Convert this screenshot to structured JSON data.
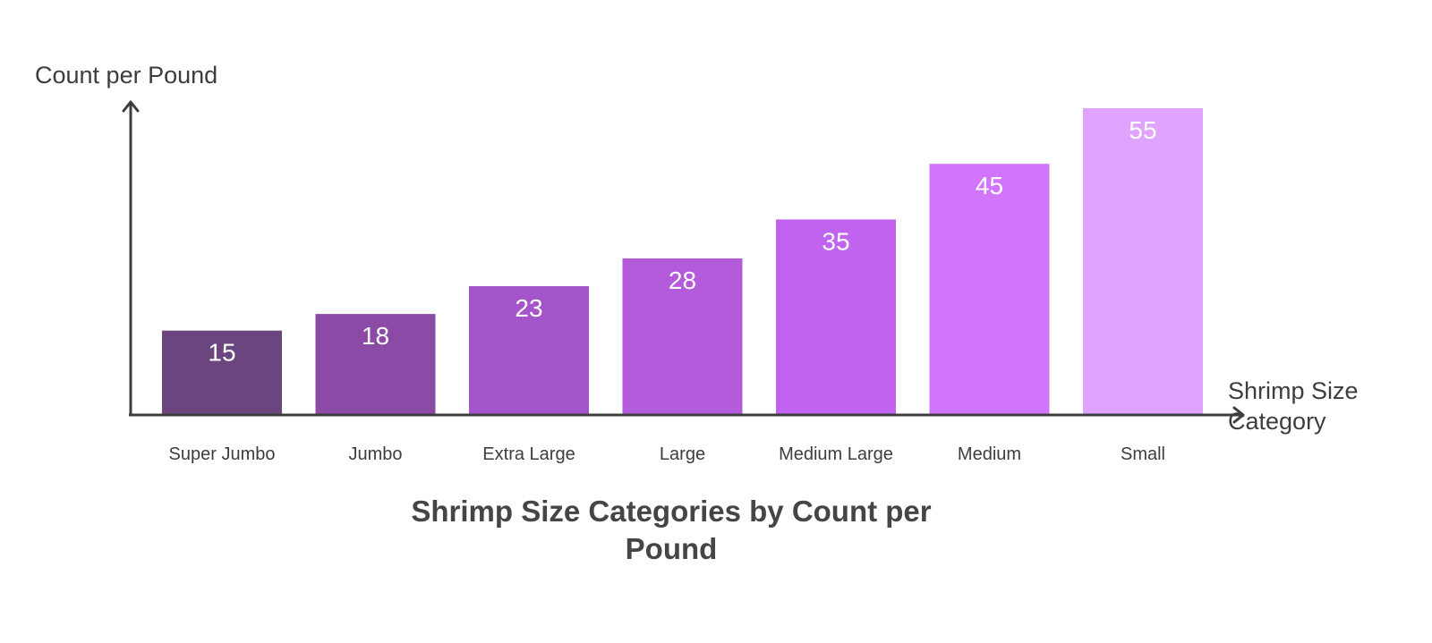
{
  "chart_data": {
    "type": "bar",
    "title": "Shrimp Size Categories by Count per Pound",
    "ylabel": "Count per Pound",
    "xlabel": "Shrimp Size Category",
    "categories": [
      "Super Jumbo",
      "Jumbo",
      "Extra Large",
      "Large",
      "Medium Large",
      "Medium",
      "Small"
    ],
    "values": [
      15,
      18,
      23,
      28,
      35,
      45,
      55
    ],
    "colors": [
      "#6b467e",
      "#8a4aa6",
      "#a555cb",
      "#b35bdb",
      "#c063ef",
      "#d275fd",
      "#e0a3ff"
    ],
    "ylim": [
      0,
      55
    ],
    "data_labels": true,
    "grid": false,
    "legend": false
  },
  "colors": {
    "axis": "#3d3d3d",
    "text": "#3d3d3d",
    "value_label": "#ffffff"
  }
}
